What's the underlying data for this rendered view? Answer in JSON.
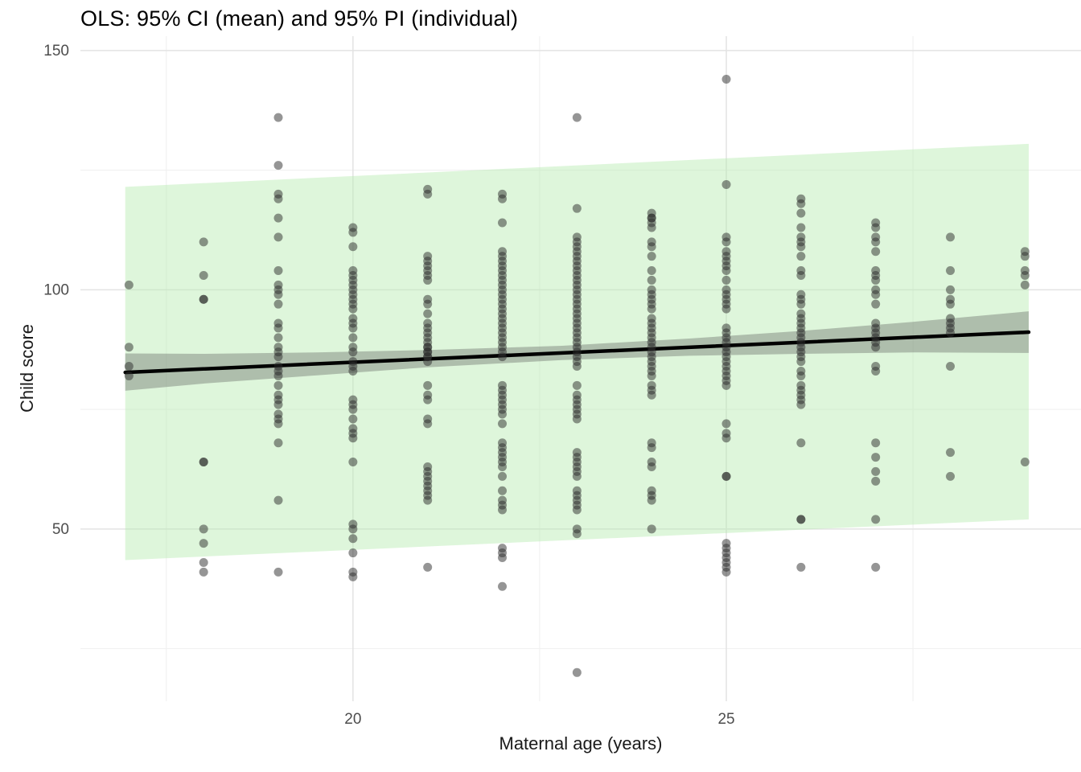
{
  "chart_data": {
    "type": "scatter",
    "title": "OLS: 95% CI (mean) and 95% PI (individual)",
    "xlabel": "Maternal age (years)",
    "ylabel": "Child score",
    "xlim": [
      16.35,
      29.75
    ],
    "ylim": [
      14,
      153
    ],
    "x_major_ticks": [
      {
        "value": 20,
        "label": "20"
      },
      {
        "value": 25,
        "label": "25"
      }
    ],
    "x_minor_ticks": [
      17.5,
      22.5,
      27.5
    ],
    "y_major_ticks": [
      {
        "value": 50,
        "label": "50"
      },
      {
        "value": 100,
        "label": "100"
      },
      {
        "value": 150,
        "label": "150"
      }
    ],
    "y_minor_ticks": [
      25,
      75,
      125
    ],
    "legend_position": "none",
    "grid": "on",
    "regression_line": {
      "intercept": 70.95,
      "slope": 0.695,
      "x_start": 16.95,
      "x_end": 29.05
    },
    "ci_band": {
      "x": [
        16.95,
        18.0,
        19.5,
        21.0,
        22.8,
        24.5,
        26.0,
        27.5,
        29.05
      ],
      "lower": [
        78.9,
        80.4,
        82.1,
        83.8,
        85.3,
        86.2,
        86.6,
        86.9,
        86.8
      ],
      "upper": [
        86.7,
        86.6,
        86.9,
        87.4,
        88.3,
        89.8,
        91.4,
        93.3,
        95.5
      ]
    },
    "pi_band": {
      "x": [
        16.95,
        29.05
      ],
      "lower": [
        43.5,
        52.0
      ],
      "upper": [
        121.5,
        130.5
      ]
    },
    "points_by_age": {
      "17": [
        101,
        88,
        84,
        82
      ],
      "18": [
        110,
        103,
        98,
        98,
        64,
        64,
        50,
        47,
        43,
        41
      ],
      "19": [
        136,
        126,
        120,
        119,
        115,
        111,
        104,
        101,
        100,
        99,
        97,
        93,
        92,
        90,
        88,
        87,
        86,
        84,
        83,
        82,
        80,
        78,
        77,
        76,
        74,
        73,
        72,
        68,
        56,
        41
      ],
      "20": [
        113,
        112,
        109,
        104,
        103,
        102,
        101,
        100,
        99,
        98,
        97,
        96,
        94,
        93,
        92,
        90,
        88,
        87,
        85,
        84,
        83,
        77,
        76,
        75,
        73,
        71,
        70,
        69,
        64,
        51,
        50,
        48,
        45,
        41,
        40
      ],
      "21": [
        121,
        120,
        107,
        106,
        105,
        104,
        103,
        102,
        98,
        97,
        95,
        93,
        92,
        91,
        90,
        89,
        88,
        88,
        87,
        87,
        86,
        86,
        85,
        80,
        78,
        77,
        73,
        72,
        63,
        62,
        61,
        60,
        59,
        58,
        57,
        56,
        42
      ],
      "22": [
        120,
        119,
        114,
        108,
        107,
        106,
        105,
        104,
        103,
        102,
        101,
        100,
        99,
        98,
        97,
        96,
        95,
        94,
        93,
        92,
        91,
        90,
        89,
        88,
        87,
        86,
        80,
        79,
        78,
        77,
        76,
        75,
        74,
        72,
        68,
        67,
        66,
        65,
        64,
        63,
        61,
        58,
        56,
        55,
        54,
        46,
        45,
        44,
        38
      ],
      "23": [
        136,
        117,
        111,
        110,
        109,
        108,
        107,
        106,
        105,
        104,
        103,
        102,
        101,
        100,
        99,
        98,
        97,
        96,
        95,
        94,
        93,
        92,
        91,
        90,
        89,
        88,
        87,
        86,
        85,
        84,
        80,
        78,
        77,
        76,
        75,
        74,
        73,
        66,
        65,
        64,
        63,
        62,
        61,
        58,
        57,
        56,
        55,
        54,
        50,
        49,
        20
      ],
      "24": [
        116,
        115,
        115,
        114,
        113,
        110,
        109,
        107,
        104,
        102,
        100,
        99,
        98,
        97,
        96,
        94,
        93,
        92,
        91,
        90,
        89,
        88,
        87,
        86,
        85,
        84,
        83,
        82,
        80,
        79,
        78,
        68,
        67,
        64,
        63,
        58,
        57,
        56,
        50
      ],
      "25": [
        144,
        122,
        111,
        110,
        108,
        107,
        106,
        105,
        104,
        102,
        100,
        99,
        98,
        97,
        96,
        92,
        91,
        90,
        89,
        88,
        87,
        86,
        85,
        84,
        83,
        82,
        81,
        80,
        72,
        70,
        69,
        61,
        61,
        47,
        46,
        45,
        44,
        43,
        42,
        41
      ],
      "26": [
        119,
        118,
        116,
        113,
        111,
        110,
        109,
        107,
        104,
        103,
        99,
        98,
        97,
        95,
        94,
        93,
        92,
        91,
        90,
        89,
        88,
        87,
        86,
        85,
        83,
        82,
        80,
        79,
        78,
        77,
        76,
        68,
        52,
        52,
        42
      ],
      "27": [
        114,
        113,
        111,
        110,
        108,
        104,
        103,
        102,
        100,
        99,
        97,
        93,
        92,
        91,
        90,
        89,
        88,
        84,
        83,
        68,
        65,
        62,
        60,
        52,
        42
      ],
      "28": [
        111,
        104,
        100,
        98,
        97,
        94,
        93,
        92,
        91,
        84,
        66,
        61
      ],
      "29": [
        108,
        107,
        104,
        103,
        101,
        64
      ]
    },
    "colors": {
      "pi_fill": "#b6ecb0",
      "pi_opacity": 0.45,
      "ci_fill": "#555555",
      "ci_opacity": 0.35,
      "line": "#000000",
      "point": "#2b2b2b",
      "point_opacity": 0.5,
      "grid_major": "#e3e3e3",
      "grid_minor": "#f1f1f1",
      "tick_label": "#4d4d4d",
      "axis_title": "#1a1a1a",
      "title": "#000000"
    }
  }
}
